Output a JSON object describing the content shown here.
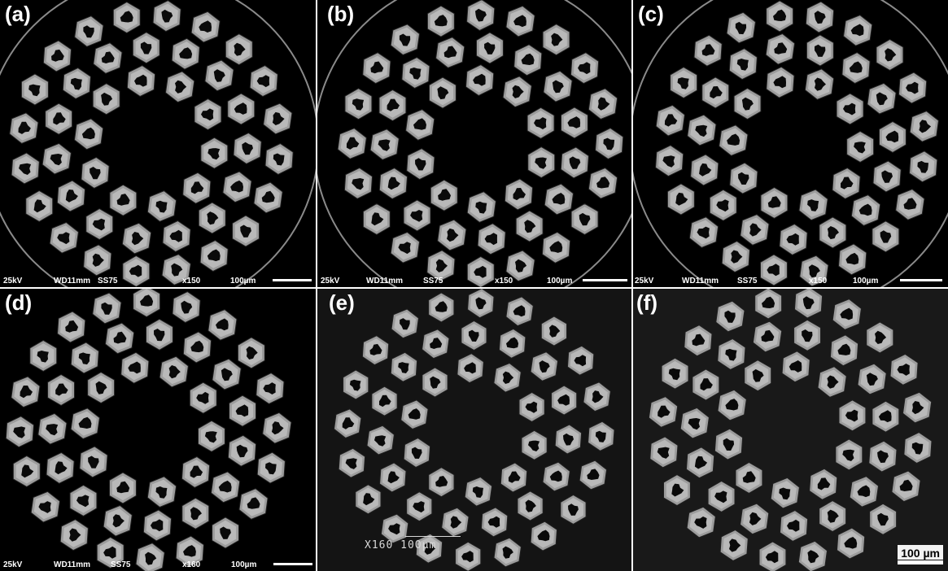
{
  "panels": [
    {
      "label": "(a)",
      "info": {
        "kv": "25kV",
        "wd": "WD11mm",
        "ss": "SS75",
        "mag": "x150",
        "scale": "100µm"
      }
    },
    {
      "label": "(b)",
      "info": {
        "kv": "25kV",
        "wd": "WD11mm",
        "ss": "SS75",
        "mag": "x150",
        "scale": "100µm"
      }
    },
    {
      "label": "(c)",
      "info": {
        "kv": "25kV",
        "wd": "WD11mm",
        "ss": "SS75",
        "mag": "x150",
        "scale": "100µm"
      }
    },
    {
      "label": "(d)",
      "info": {
        "kv": "25kV",
        "wd": "WD11mm",
        "ss": "SS75",
        "mag": "x160",
        "scale": "100µm"
      }
    },
    {
      "label": "(e)",
      "sem_mark": "X160 100μm"
    },
    {
      "label": "(f)",
      "scale_bar": "100 µm"
    }
  ],
  "colors": {
    "filament_outer": "#9c9c9c",
    "filament_inner": "#b9b9b9",
    "core": "#0a0a0a",
    "background": "#000000"
  }
}
